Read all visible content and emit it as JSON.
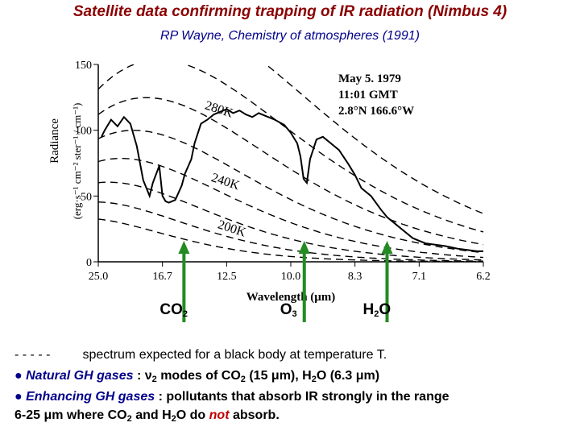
{
  "page": {
    "title": "Satellite data confirming trapping of IR radiation (Nimbus 4)",
    "subtitle": "RP Wayne, Chemistry of atmospheres (1991)"
  },
  "chart_data": {
    "type": "line",
    "ylabel_top": "Radiance",
    "ylabel_units": "(erg·s⁻¹ cm⁻² ster⁻¹ / cm⁻¹)",
    "xlabel": "Wavelength (μm)",
    "x_ticks": [
      "25.0",
      "16.7",
      "12.5",
      "10.0",
      "8.3",
      "7.1",
      "6.2"
    ],
    "x_tick_wavenumbers": [
      400,
      600,
      800,
      1000,
      1200,
      1400,
      1600
    ],
    "y_ticks": [
      0,
      50,
      100,
      150
    ],
    "ylim": [
      0,
      150
    ],
    "xlim_wavenumber": [
      400,
      1600
    ],
    "annotation": [
      "May 5. 1979",
      "11:01 GMT",
      "2.8°N 166.6°W"
    ],
    "blackbody_curves": [
      {
        "label": "",
        "temperature_K": 320
      },
      {
        "label": "",
        "temperature_K": 300
      },
      {
        "label": "280K",
        "temperature_K": 280
      },
      {
        "label": "",
        "temperature_K": 260
      },
      {
        "label": "240K",
        "temperature_K": 240
      },
      {
        "label": "",
        "temperature_K": 220
      },
      {
        "label": "200K",
        "temperature_K": 200
      },
      {
        "label": "",
        "temperature_K": 180
      }
    ],
    "measured_series": {
      "wavenumber": [
        410,
        420,
        440,
        460,
        480,
        500,
        520,
        540,
        560,
        570,
        590,
        600,
        610,
        620,
        640,
        660,
        670,
        690,
        700,
        720,
        740,
        760,
        780,
        800,
        820,
        840,
        860,
        880,
        900,
        920,
        950,
        980,
        1000,
        1020,
        1030,
        1040,
        1050,
        1060,
        1080,
        1100,
        1120,
        1150,
        1180,
        1200,
        1220,
        1250,
        1280,
        1300,
        1330,
        1360,
        1380,
        1400,
        1420,
        1450,
        1480,
        1500,
        1520,
        1550,
        1580,
        1600
      ],
      "radiance": [
        95,
        100,
        108,
        103,
        110,
        105,
        88,
        62,
        50,
        60,
        73,
        50,
        46,
        45,
        47,
        58,
        67,
        78,
        90,
        105,
        108,
        112,
        114,
        116,
        113,
        115,
        112,
        110,
        113,
        111,
        108,
        104,
        98,
        90,
        80,
        63,
        60,
        78,
        93,
        95,
        91,
        85,
        74,
        66,
        56,
        50,
        40,
        34,
        28,
        22,
        18,
        16,
        14,
        13,
        12,
        11,
        10,
        9,
        8,
        8
      ]
    }
  },
  "gas_labels": [
    {
      "name": "CO",
      "sub": "2",
      "wavenumber": 667
    },
    {
      "name": "O",
      "sub": "3",
      "wavenumber": 1042
    },
    {
      "name": "H",
      "sub": "2",
      "after": "O",
      "wavenumber": 1300
    }
  ],
  "colors": {
    "title": "#8b0000",
    "subtitle": "#00008b",
    "arrow": "#228b22",
    "highlight": "#00008b",
    "not": "#c00000"
  },
  "legend": {
    "dashes": "- - - - -",
    "dashes_text": "spectrum expected for a black body at temperature T.",
    "line2_bullet": "● Natural GH gases",
    "line2_a": " :  ν",
    "line2_a_sub": "2",
    "line2_b": " modes of CO",
    "line2_b_sub": "2",
    "line2_c": " (15 μm), H",
    "line2_c_sub": "2",
    "line2_d": "O (6.3 μm)",
    "line3_bullet": "● Enhancing GH gases",
    "line3_text": " :  pollutants that absorb IR strongly in the range",
    "line4_a": "6-25 μm where CO",
    "line4_a_sub": "2",
    "line4_b": " and H",
    "line4_b_sub": "2",
    "line4_c": "O do ",
    "line4_not": "not",
    "line4_d": " absorb."
  }
}
